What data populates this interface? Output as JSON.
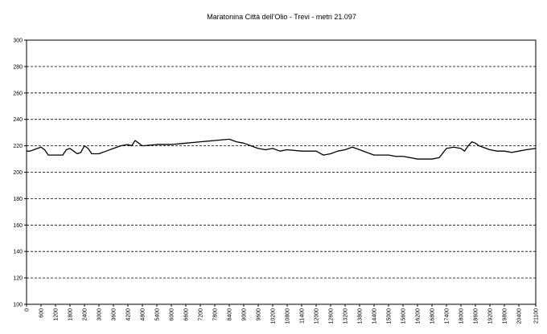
{
  "chart_data": {
    "type": "line",
    "title": "Maratonina Città dell'Olio - Trevi - metri 21.097",
    "xlabel": "",
    "ylabel": "",
    "xlim": [
      0,
      21100
    ],
    "ylim": [
      100,
      300
    ],
    "grid": "horizontal-dashed",
    "legend": "none",
    "line_color": "#000000",
    "y_ticks": [
      "100",
      "120",
      "140",
      "160",
      "180",
      "200",
      "220",
      "240",
      "260",
      "280",
      "300"
    ],
    "x_ticks": [
      "0",
      "600",
      "1200",
      "1800",
      "2400",
      "3000",
      "3600",
      "4200",
      "4800",
      "5400",
      "6000",
      "6600",
      "7200",
      "7800",
      "8400",
      "9000",
      "9600",
      "10200",
      "10800",
      "11400",
      "12000",
      "12600",
      "13200",
      "13800",
      "14400",
      "15000",
      "15600",
      "16200",
      "16800",
      "17400",
      "18000",
      "18600",
      "19200",
      "19800",
      "20400",
      "21100"
    ],
    "series": [
      {
        "x": [
          0,
          150,
          300,
          450,
          600,
          750,
          900,
          1200,
          1500,
          1650,
          1800,
          1950,
          2100,
          2250,
          2400,
          2550,
          2700,
          3000,
          3300,
          3600,
          3900,
          4200,
          4350,
          4500,
          4650,
          4800,
          5400,
          6000,
          6600,
          7200,
          7800,
          8400,
          8700,
          9000,
          9300,
          9600,
          9900,
          10200,
          10500,
          10800,
          11400,
          12000,
          12300,
          12600,
          12900,
          13200,
          13500,
          13800,
          14100,
          14400,
          14700,
          15000,
          15300,
          15600,
          15900,
          16200,
          16500,
          16800,
          17100,
          17400,
          17700,
          18000,
          18150,
          18300,
          18450,
          18600,
          18750,
          18900,
          19050,
          19200,
          19500,
          19800,
          20100,
          20400,
          20700,
          21100
        ],
        "y": [
          216,
          216,
          217,
          218,
          219,
          217,
          213,
          213,
          213,
          217,
          218,
          216,
          214,
          215,
          220,
          218,
          214,
          214,
          216,
          218,
          220,
          221,
          220,
          224,
          222,
          220,
          221,
          221,
          222,
          223,
          224,
          225,
          223,
          222,
          220,
          218,
          217,
          218,
          216,
          217,
          216,
          216,
          213,
          214,
          216,
          217,
          219,
          217,
          215,
          213,
          213,
          213,
          212,
          212,
          211,
          210,
          210,
          210,
          211,
          218,
          219,
          218,
          216,
          220,
          223,
          222,
          220,
          219,
          218,
          217,
          216,
          216,
          215,
          216,
          217,
          218
        ]
      }
    ]
  }
}
